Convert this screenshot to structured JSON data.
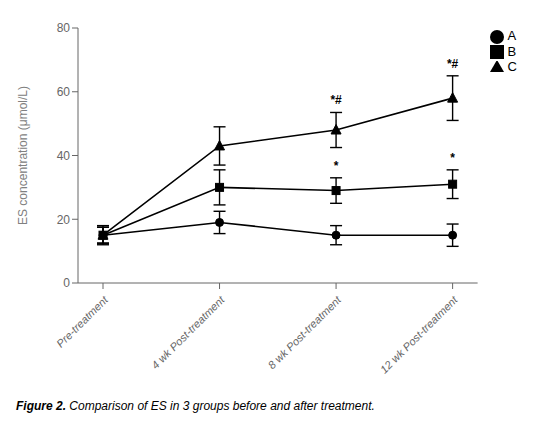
{
  "chart_data": {
    "type": "line",
    "categories": [
      "Pre-treatment",
      "4 wk Post-treatment",
      "8 wk Post-treatment",
      "12 wk Post-treatment"
    ],
    "series": [
      {
        "name": "A",
        "color": "#000000",
        "marker": "circle",
        "values": [
          15,
          19,
          15,
          15
        ],
        "errors": [
          2.5,
          3.5,
          3.0,
          3.5
        ]
      },
      {
        "name": "B",
        "color": "#000000",
        "marker": "square",
        "values": [
          15,
          30,
          29,
          31
        ],
        "errors": [
          2.5,
          5.5,
          4.0,
          4.5
        ]
      },
      {
        "name": "C",
        "color": "#000000",
        "marker": "triangle",
        "values": [
          15,
          43,
          48,
          58
        ],
        "errors": [
          3.0,
          6.0,
          5.5,
          7.0
        ]
      }
    ],
    "ylabel": "ES concentration (μmol/L)",
    "ylim": [
      0,
      80
    ],
    "yticks": [
      0,
      20,
      40,
      60,
      80
    ],
    "annotations": [
      {
        "x": "8 wk Post-treatment",
        "y": 54.5,
        "text": "*#"
      },
      {
        "x": "12 wk Post-treatment",
        "y": 66.0,
        "text": "*#"
      },
      {
        "x": "8 wk Post-treatment",
        "y": 34.0,
        "text": "*"
      },
      {
        "x": "12 wk Post-treatment",
        "y": 36.5,
        "text": "*"
      }
    ],
    "caption_bold": "Figure 2.",
    "caption": " Comparison of ES in 3 groups before and after treatment.",
    "legend": "right",
    "grid": false
  }
}
